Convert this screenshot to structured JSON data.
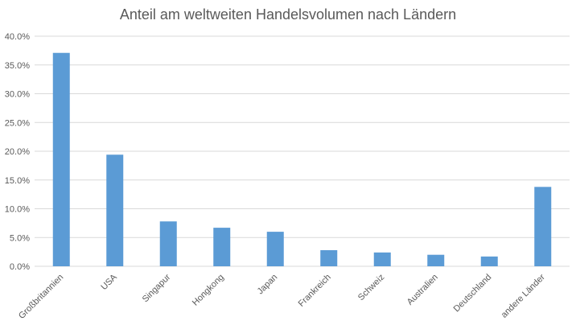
{
  "chart_data": {
    "type": "bar",
    "title": "Anteil am weltweiten Handelsvolumen nach Ländern",
    "xlabel": "",
    "ylabel": "",
    "categories": [
      "Großbritannien",
      "USA",
      "Singapur",
      "Hongkong",
      "Japan",
      "Frankreich",
      "Schweiz",
      "Australien",
      "Deutschland",
      "andere Länder"
    ],
    "values": [
      37.1,
      19.4,
      7.8,
      6.7,
      6.0,
      2.8,
      2.4,
      2.0,
      1.7,
      13.8
    ],
    "ylim": [
      0,
      40
    ],
    "yticks": [
      "0.0%",
      "5.0%",
      "10.0%",
      "15.0%",
      "20.0%",
      "25.0%",
      "30.0%",
      "35.0%",
      "40.0%"
    ],
    "grid": true,
    "legend": "none",
    "bar_color": "#5B9BD5",
    "grid_color": "#D9D9D9"
  }
}
